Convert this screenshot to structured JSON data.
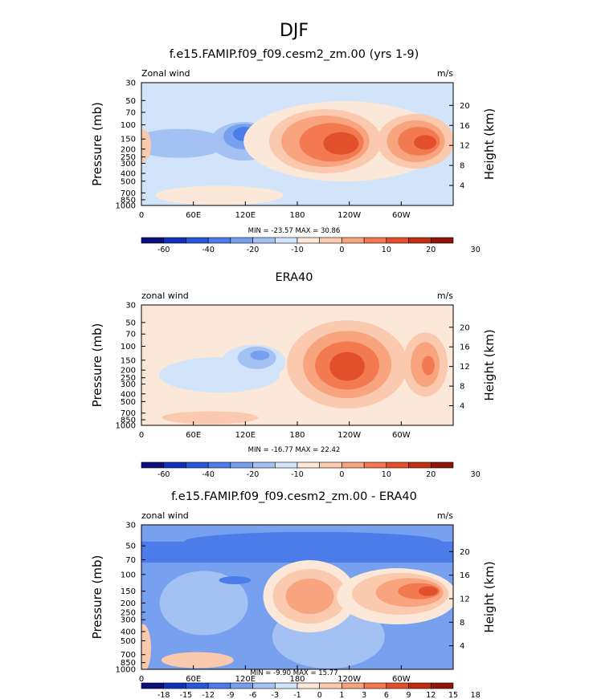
{
  "figure": {
    "title": "DJF"
  },
  "colors": {
    "main_scale": [
      "#0a0f7c",
      "#1330b8",
      "#2a56dd",
      "#4c7ce9",
      "#77a0ef",
      "#a4c1f4",
      "#d2e4fa",
      "#fce8d8",
      "#fbc9ae",
      "#f8a47e",
      "#f27950",
      "#e2502b",
      "#c22e14",
      "#8f1606"
    ],
    "diff_scale": [
      "#0a0f7c",
      "#1330b8",
      "#2a56dd",
      "#4c7ce9",
      "#77a0ef",
      "#a4c1f4",
      "#d2e4fa",
      "#fce8d8",
      "#fbc9ae",
      "#f8a47e",
      "#f27950",
      "#e2502b",
      "#c22e14",
      "#8f1606"
    ]
  },
  "chart_data": [
    {
      "type": "heatmap",
      "title": "f.e15.FAMIP.f09_f09.cesm2_zm.00 (yrs 1-9)",
      "left_label": "Zonal wind",
      "right_label": "m/s",
      "ylabel": "Pressure (mb)",
      "ylabel_right": "Height (km)",
      "x_ticks": [
        "0",
        "60E",
        "120E",
        "180",
        "120W",
        "60W"
      ],
      "y_ticks": [
        "30",
        "50",
        "70",
        "100",
        "150",
        "200",
        "250",
        "300",
        "400",
        "500",
        "700",
        "850",
        "1000"
      ],
      "height_ticks": [
        "20",
        "16",
        "12",
        "8",
        "4"
      ],
      "stats": "MIN = -23.57  MAX = 30.86",
      "colorbar_labels": [
        "-60",
        "-40",
        "-20",
        "-10",
        "0",
        "10",
        "20",
        "30"
      ],
      "log_pressure_axis": true
    },
    {
      "type": "heatmap",
      "title": "ERA40",
      "left_label": "zonal wind",
      "right_label": "m/s",
      "ylabel": "Pressure (mb)",
      "ylabel_right": "Height (km)",
      "x_ticks": [
        "0",
        "60E",
        "120E",
        "180",
        "120W",
        "60W"
      ],
      "y_ticks": [
        "30",
        "50",
        "70",
        "100",
        "150",
        "200",
        "250",
        "300",
        "400",
        "500",
        "700",
        "850",
        "1000"
      ],
      "height_ticks": [
        "20",
        "16",
        "12",
        "8",
        "4"
      ],
      "stats": "MIN = -16.77  MAX = 22.42",
      "colorbar_labels": [
        "-60",
        "-40",
        "-20",
        "-10",
        "0",
        "10",
        "20",
        "30"
      ],
      "log_pressure_axis": true
    },
    {
      "type": "heatmap",
      "title": "f.e15.FAMIP.f09_f09.cesm2_zm.00 - ERA40",
      "left_label": "zonal wind",
      "right_label": "m/s",
      "ylabel": "Pressure (mb)",
      "ylabel_right": "Height (km)",
      "x_ticks": [
        "0",
        "60E",
        "120E",
        "180",
        "120W",
        "60W"
      ],
      "y_ticks": [
        "30",
        "50",
        "70",
        "100",
        "150",
        "200",
        "250",
        "300",
        "400",
        "500",
        "700",
        "850",
        "1000"
      ],
      "height_ticks": [
        "20",
        "16",
        "12",
        "8",
        "4"
      ],
      "stats": "MIN = -9.90  MAX = 15.77",
      "colorbar_labels": [
        "-18",
        "-15",
        "-12",
        "-9",
        "-6",
        "-3",
        "-1",
        "0",
        "1",
        "3",
        "6",
        "9",
        "12",
        "15",
        "18"
      ],
      "log_pressure_axis": true
    }
  ]
}
